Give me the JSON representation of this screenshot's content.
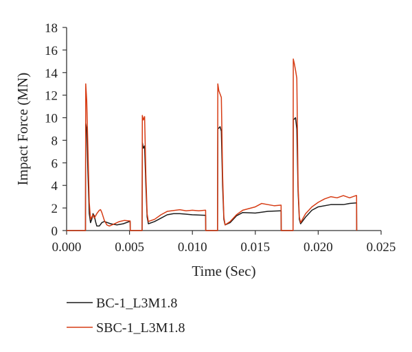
{
  "chart_data": {
    "type": "line",
    "xlabel": "Time (Sec)",
    "ylabel": "Impact Force (MN)",
    "xlim": [
      0.0,
      0.025
    ],
    "ylim": [
      0,
      18
    ],
    "xticks": [
      "0.000",
      "0.005",
      "0.010",
      "0.015",
      "0.020",
      "0.025"
    ],
    "yticks": [
      "0",
      "2",
      "4",
      "6",
      "8",
      "10",
      "12",
      "14",
      "16",
      "18"
    ],
    "grid": false,
    "legend_position": "bottom-left",
    "series": [
      {
        "name": "BC-1_L3M1.8",
        "color": "#1a1a1a",
        "points": [
          [
            0.0,
            0.0
          ],
          [
            0.0015,
            0.0
          ],
          [
            0.00152,
            9.5
          ],
          [
            0.0016,
            8.9
          ],
          [
            0.0017,
            5.0
          ],
          [
            0.0018,
            1.5
          ],
          [
            0.0019,
            0.7
          ],
          [
            0.002,
            1.0
          ],
          [
            0.0021,
            1.5
          ],
          [
            0.0022,
            1.3
          ],
          [
            0.0023,
            0.8
          ],
          [
            0.0024,
            0.4
          ],
          [
            0.0026,
            0.4
          ],
          [
            0.0028,
            0.7
          ],
          [
            0.003,
            0.8
          ],
          [
            0.0035,
            0.6
          ],
          [
            0.004,
            0.5
          ],
          [
            0.0045,
            0.6
          ],
          [
            0.005,
            0.8
          ],
          [
            0.00505,
            0.8
          ],
          [
            0.00506,
            0.0
          ],
          [
            0.006,
            0.0
          ],
          [
            0.00602,
            7.8
          ],
          [
            0.0061,
            7.3
          ],
          [
            0.0062,
            7.5
          ],
          [
            0.0063,
            4.0
          ],
          [
            0.0064,
            1.2
          ],
          [
            0.0065,
            0.6
          ],
          [
            0.007,
            0.8
          ],
          [
            0.0075,
            1.1
          ],
          [
            0.008,
            1.4
          ],
          [
            0.0085,
            1.5
          ],
          [
            0.009,
            1.5
          ],
          [
            0.0095,
            1.45
          ],
          [
            0.01,
            1.4
          ],
          [
            0.011,
            1.35
          ],
          [
            0.01105,
            1.35
          ],
          [
            0.01106,
            0.0
          ],
          [
            0.012,
            0.0
          ],
          [
            0.01202,
            9.0
          ],
          [
            0.0122,
            9.2
          ],
          [
            0.0123,
            8.8
          ],
          [
            0.0124,
            4.0
          ],
          [
            0.0125,
            1.0
          ],
          [
            0.0126,
            0.5
          ],
          [
            0.013,
            0.7
          ],
          [
            0.0135,
            1.3
          ],
          [
            0.014,
            1.6
          ],
          [
            0.015,
            1.55
          ],
          [
            0.016,
            1.7
          ],
          [
            0.017,
            1.75
          ],
          [
            0.01705,
            1.75
          ],
          [
            0.01706,
            0.0
          ],
          [
            0.018,
            0.0
          ],
          [
            0.01802,
            9.8
          ],
          [
            0.0182,
            10.0
          ],
          [
            0.0183,
            9.0
          ],
          [
            0.0184,
            3.5
          ],
          [
            0.0185,
            1.0
          ],
          [
            0.0186,
            0.6
          ],
          [
            0.019,
            1.2
          ],
          [
            0.0195,
            1.8
          ],
          [
            0.02,
            2.1
          ],
          [
            0.021,
            2.3
          ],
          [
            0.022,
            2.3
          ],
          [
            0.0225,
            2.4
          ],
          [
            0.023,
            2.45
          ],
          [
            0.02305,
            2.45
          ],
          [
            0.02306,
            0.0
          ]
        ]
      },
      {
        "name": "SBC-1_L3M1.8",
        "color": "#d63a12",
        "points": [
          [
            0.0,
            0.0
          ],
          [
            0.0015,
            0.0
          ],
          [
            0.00152,
            13.0
          ],
          [
            0.0016,
            11.5
          ],
          [
            0.0017,
            7.0
          ],
          [
            0.0018,
            2.5
          ],
          [
            0.0019,
            1.0
          ],
          [
            0.002,
            1.2
          ],
          [
            0.0021,
            1.4
          ],
          [
            0.0022,
            1.1
          ],
          [
            0.0024,
            1.5
          ],
          [
            0.0026,
            1.8
          ],
          [
            0.0027,
            1.85
          ],
          [
            0.0028,
            1.6
          ],
          [
            0.003,
            0.9
          ],
          [
            0.0032,
            0.5
          ],
          [
            0.0034,
            0.4
          ],
          [
            0.0038,
            0.6
          ],
          [
            0.0042,
            0.8
          ],
          [
            0.0046,
            0.9
          ],
          [
            0.005,
            0.85
          ],
          [
            0.00505,
            0.85
          ],
          [
            0.00506,
            0.0
          ],
          [
            0.006,
            0.0
          ],
          [
            0.00602,
            10.2
          ],
          [
            0.0061,
            9.8
          ],
          [
            0.0062,
            10.1
          ],
          [
            0.0063,
            5.0
          ],
          [
            0.0064,
            1.5
          ],
          [
            0.0065,
            0.8
          ],
          [
            0.007,
            1.0
          ],
          [
            0.0075,
            1.4
          ],
          [
            0.008,
            1.7
          ],
          [
            0.009,
            1.85
          ],
          [
            0.0095,
            1.75
          ],
          [
            0.01,
            1.8
          ],
          [
            0.0105,
            1.75
          ],
          [
            0.011,
            1.8
          ],
          [
            0.01105,
            1.8
          ],
          [
            0.01106,
            0.0
          ],
          [
            0.012,
            0.0
          ],
          [
            0.01202,
            13.0
          ],
          [
            0.0121,
            12.4
          ],
          [
            0.0123,
            11.8
          ],
          [
            0.0124,
            5.0
          ],
          [
            0.0125,
            1.2
          ],
          [
            0.0126,
            0.5
          ],
          [
            0.013,
            0.8
          ],
          [
            0.0135,
            1.4
          ],
          [
            0.014,
            1.8
          ],
          [
            0.015,
            2.1
          ],
          [
            0.0155,
            2.4
          ],
          [
            0.016,
            2.3
          ],
          [
            0.0165,
            2.2
          ],
          [
            0.017,
            2.25
          ],
          [
            0.01705,
            2.25
          ],
          [
            0.01706,
            0.0
          ],
          [
            0.018,
            0.0
          ],
          [
            0.01802,
            15.2
          ],
          [
            0.0181,
            14.8
          ],
          [
            0.0182,
            14.2
          ],
          [
            0.0183,
            13.5
          ],
          [
            0.0184,
            4.0
          ],
          [
            0.0185,
            1.2
          ],
          [
            0.0186,
            0.7
          ],
          [
            0.019,
            1.5
          ],
          [
            0.0195,
            2.1
          ],
          [
            0.02,
            2.5
          ],
          [
            0.0205,
            2.8
          ],
          [
            0.021,
            3.0
          ],
          [
            0.0215,
            2.9
          ],
          [
            0.022,
            3.1
          ],
          [
            0.0225,
            2.9
          ],
          [
            0.023,
            3.1
          ],
          [
            0.02305,
            3.1
          ],
          [
            0.02306,
            0.0
          ]
        ]
      }
    ]
  }
}
